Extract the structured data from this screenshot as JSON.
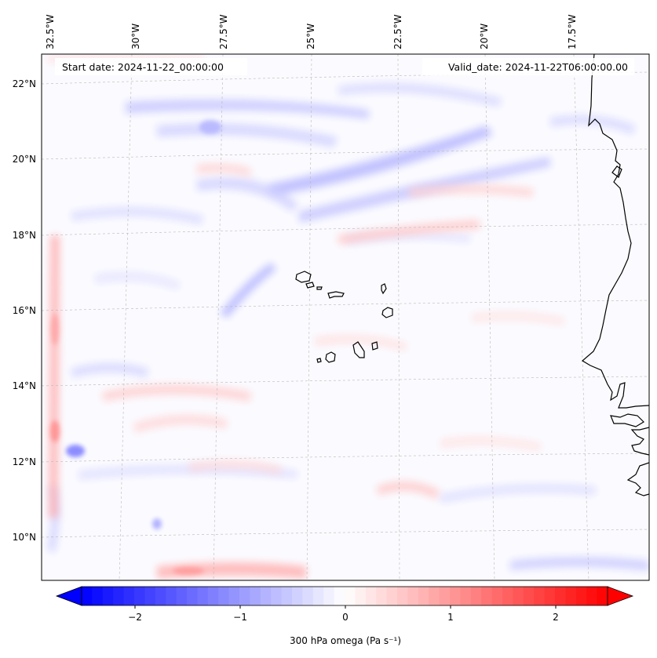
{
  "map": {
    "start_date_label": "Start date: 2024-11-22_00:00:00",
    "valid_date_label": "Valid_date: 2024-11-22T06:00:00.00",
    "lon_labels": [
      "32.5°W",
      "30°W",
      "27.5°W",
      "25°W",
      "22.5°W",
      "20°W",
      "17.5°W"
    ],
    "lat_labels": [
      "22°N",
      "20°N",
      "18°N",
      "16°N",
      "14°N",
      "12°N",
      "10°N"
    ],
    "gridlines": "dashed",
    "field_variable": "300 hPa omega",
    "features": [
      "coastline-west-africa",
      "cape-verde-islands"
    ]
  },
  "colorbar": {
    "label": "300 hPa omega (Pa s⁻¹)",
    "min": -2.5,
    "max": 2.5,
    "extend": "both",
    "ticks": [
      "−2",
      "−1",
      "0",
      "1",
      "2"
    ],
    "cmap": "bwr",
    "color_low": "#0000ff",
    "color_mid": "#ffffff",
    "color_high": "#ff0000"
  }
}
